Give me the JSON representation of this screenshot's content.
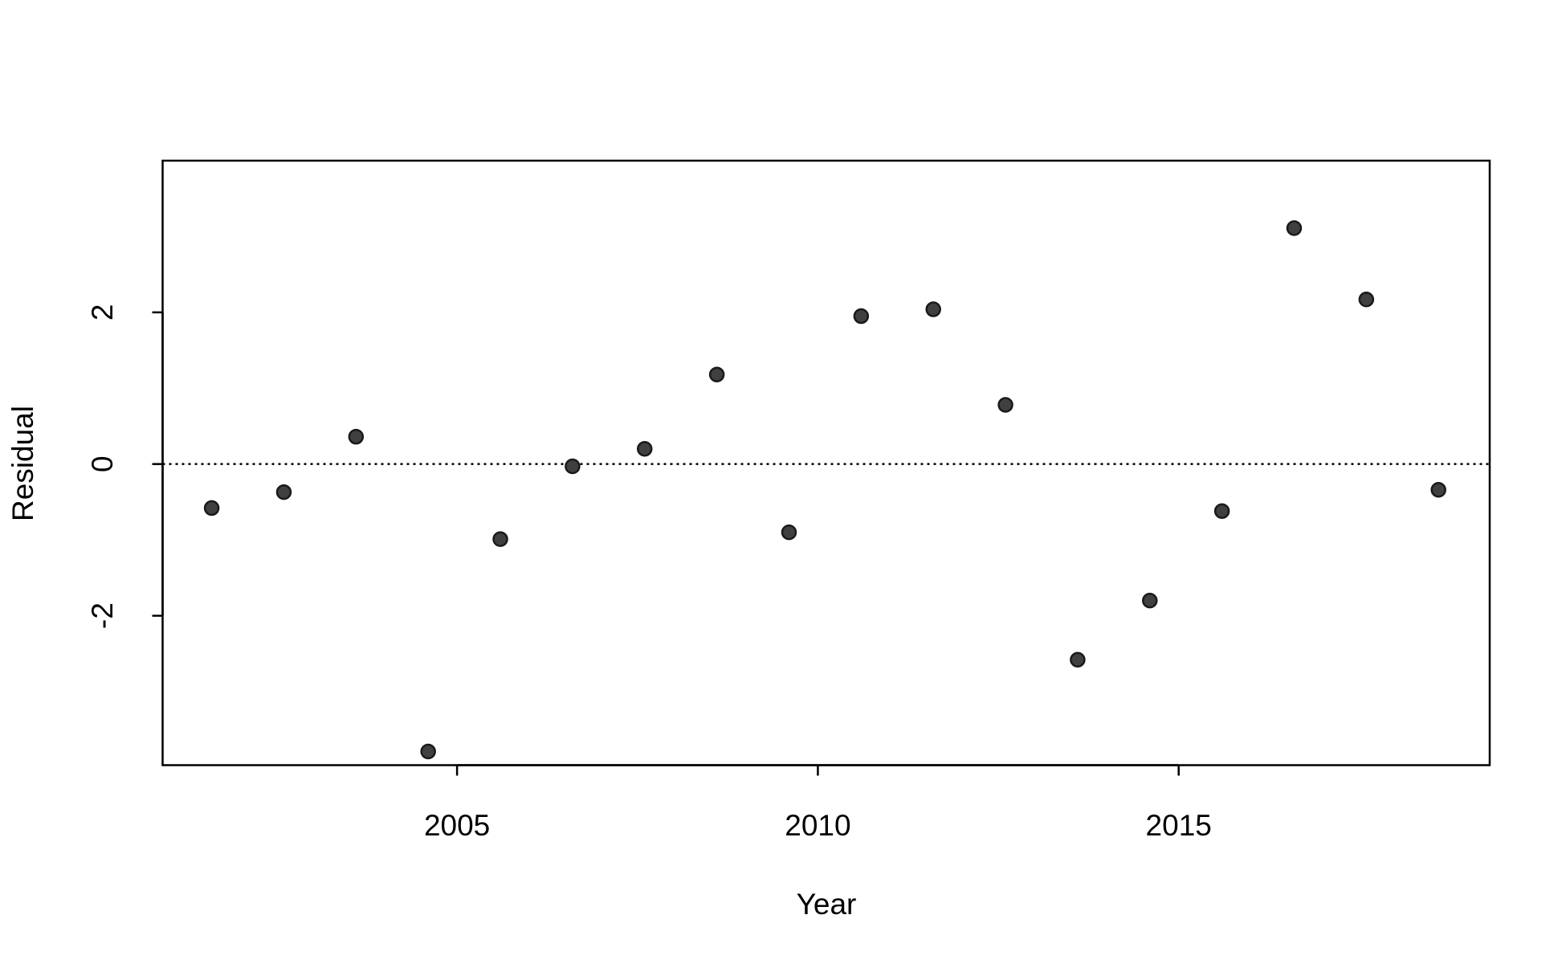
{
  "chart_data": {
    "type": "scatter",
    "x_label": "Year",
    "y_label": "Residual",
    "x": [
      2001.6,
      2002.6,
      2003.6,
      2004.6,
      2005.6,
      2006.6,
      2007.6,
      2008.6,
      2009.6,
      2010.6,
      2011.6,
      2012.6,
      2013.6,
      2014.6,
      2015.6,
      2016.6,
      2017.6,
      2018.6
    ],
    "values": [
      -0.58,
      -0.37,
      0.36,
      -3.79,
      -0.99,
      -0.03,
      0.2,
      1.18,
      -0.9,
      1.95,
      2.04,
      0.78,
      -2.58,
      -1.8,
      -0.62,
      3.11,
      2.17,
      -0.34
    ],
    "color": "#404040",
    "xlim": [
      2000.92,
      2019.31
    ],
    "ylim": [
      -3.97,
      4.0
    ],
    "xticks": [
      2005,
      2010,
      2015
    ],
    "yticks": [
      -2,
      0,
      2
    ],
    "reference_line": 0
  }
}
